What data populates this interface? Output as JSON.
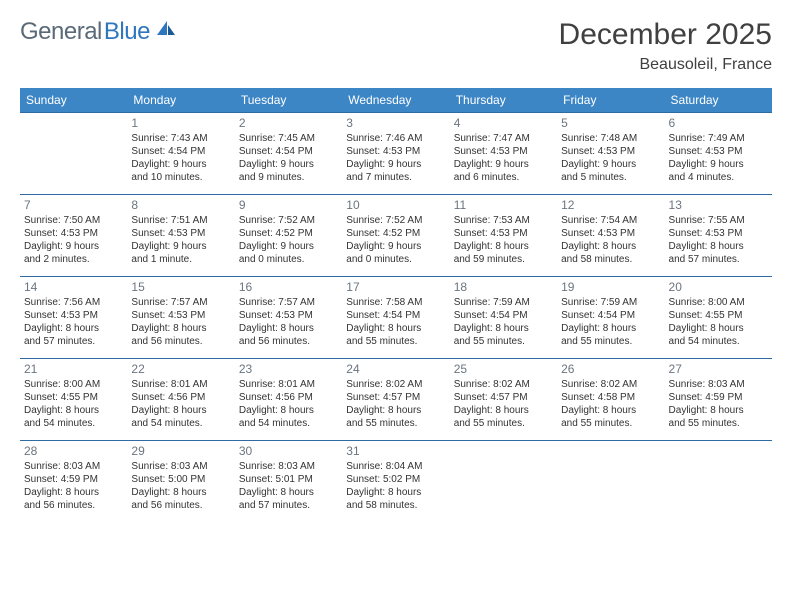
{
  "logo": {
    "part1": "General",
    "part2": "Blue"
  },
  "title": "December 2025",
  "location": "Beausoleil, France",
  "colors": {
    "header_bg": "#3d86c6",
    "header_text": "#ffffff",
    "row_border": "#2f6aa3",
    "daynum_color": "#6b7580",
    "title_color": "#404040",
    "logo_gray": "#5a6a78",
    "logo_blue": "#2f77bd",
    "background": "#ffffff"
  },
  "weekdays": [
    "Sunday",
    "Monday",
    "Tuesday",
    "Wednesday",
    "Thursday",
    "Friday",
    "Saturday"
  ],
  "weeks": [
    [
      null,
      {
        "n": "1",
        "sr": "Sunrise: 7:43 AM",
        "ss": "Sunset: 4:54 PM",
        "d1": "Daylight: 9 hours",
        "d2": "and 10 minutes."
      },
      {
        "n": "2",
        "sr": "Sunrise: 7:45 AM",
        "ss": "Sunset: 4:54 PM",
        "d1": "Daylight: 9 hours",
        "d2": "and 9 minutes."
      },
      {
        "n": "3",
        "sr": "Sunrise: 7:46 AM",
        "ss": "Sunset: 4:53 PM",
        "d1": "Daylight: 9 hours",
        "d2": "and 7 minutes."
      },
      {
        "n": "4",
        "sr": "Sunrise: 7:47 AM",
        "ss": "Sunset: 4:53 PM",
        "d1": "Daylight: 9 hours",
        "d2": "and 6 minutes."
      },
      {
        "n": "5",
        "sr": "Sunrise: 7:48 AM",
        "ss": "Sunset: 4:53 PM",
        "d1": "Daylight: 9 hours",
        "d2": "and 5 minutes."
      },
      {
        "n": "6",
        "sr": "Sunrise: 7:49 AM",
        "ss": "Sunset: 4:53 PM",
        "d1": "Daylight: 9 hours",
        "d2": "and 4 minutes."
      }
    ],
    [
      {
        "n": "7",
        "sr": "Sunrise: 7:50 AM",
        "ss": "Sunset: 4:53 PM",
        "d1": "Daylight: 9 hours",
        "d2": "and 2 minutes."
      },
      {
        "n": "8",
        "sr": "Sunrise: 7:51 AM",
        "ss": "Sunset: 4:53 PM",
        "d1": "Daylight: 9 hours",
        "d2": "and 1 minute."
      },
      {
        "n": "9",
        "sr": "Sunrise: 7:52 AM",
        "ss": "Sunset: 4:52 PM",
        "d1": "Daylight: 9 hours",
        "d2": "and 0 minutes."
      },
      {
        "n": "10",
        "sr": "Sunrise: 7:52 AM",
        "ss": "Sunset: 4:52 PM",
        "d1": "Daylight: 9 hours",
        "d2": "and 0 minutes."
      },
      {
        "n": "11",
        "sr": "Sunrise: 7:53 AM",
        "ss": "Sunset: 4:53 PM",
        "d1": "Daylight: 8 hours",
        "d2": "and 59 minutes."
      },
      {
        "n": "12",
        "sr": "Sunrise: 7:54 AM",
        "ss": "Sunset: 4:53 PM",
        "d1": "Daylight: 8 hours",
        "d2": "and 58 minutes."
      },
      {
        "n": "13",
        "sr": "Sunrise: 7:55 AM",
        "ss": "Sunset: 4:53 PM",
        "d1": "Daylight: 8 hours",
        "d2": "and 57 minutes."
      }
    ],
    [
      {
        "n": "14",
        "sr": "Sunrise: 7:56 AM",
        "ss": "Sunset: 4:53 PM",
        "d1": "Daylight: 8 hours",
        "d2": "and 57 minutes."
      },
      {
        "n": "15",
        "sr": "Sunrise: 7:57 AM",
        "ss": "Sunset: 4:53 PM",
        "d1": "Daylight: 8 hours",
        "d2": "and 56 minutes."
      },
      {
        "n": "16",
        "sr": "Sunrise: 7:57 AM",
        "ss": "Sunset: 4:53 PM",
        "d1": "Daylight: 8 hours",
        "d2": "and 56 minutes."
      },
      {
        "n": "17",
        "sr": "Sunrise: 7:58 AM",
        "ss": "Sunset: 4:54 PM",
        "d1": "Daylight: 8 hours",
        "d2": "and 55 minutes."
      },
      {
        "n": "18",
        "sr": "Sunrise: 7:59 AM",
        "ss": "Sunset: 4:54 PM",
        "d1": "Daylight: 8 hours",
        "d2": "and 55 minutes."
      },
      {
        "n": "19",
        "sr": "Sunrise: 7:59 AM",
        "ss": "Sunset: 4:54 PM",
        "d1": "Daylight: 8 hours",
        "d2": "and 55 minutes."
      },
      {
        "n": "20",
        "sr": "Sunrise: 8:00 AM",
        "ss": "Sunset: 4:55 PM",
        "d1": "Daylight: 8 hours",
        "d2": "and 54 minutes."
      }
    ],
    [
      {
        "n": "21",
        "sr": "Sunrise: 8:00 AM",
        "ss": "Sunset: 4:55 PM",
        "d1": "Daylight: 8 hours",
        "d2": "and 54 minutes."
      },
      {
        "n": "22",
        "sr": "Sunrise: 8:01 AM",
        "ss": "Sunset: 4:56 PM",
        "d1": "Daylight: 8 hours",
        "d2": "and 54 minutes."
      },
      {
        "n": "23",
        "sr": "Sunrise: 8:01 AM",
        "ss": "Sunset: 4:56 PM",
        "d1": "Daylight: 8 hours",
        "d2": "and 54 minutes."
      },
      {
        "n": "24",
        "sr": "Sunrise: 8:02 AM",
        "ss": "Sunset: 4:57 PM",
        "d1": "Daylight: 8 hours",
        "d2": "and 55 minutes."
      },
      {
        "n": "25",
        "sr": "Sunrise: 8:02 AM",
        "ss": "Sunset: 4:57 PM",
        "d1": "Daylight: 8 hours",
        "d2": "and 55 minutes."
      },
      {
        "n": "26",
        "sr": "Sunrise: 8:02 AM",
        "ss": "Sunset: 4:58 PM",
        "d1": "Daylight: 8 hours",
        "d2": "and 55 minutes."
      },
      {
        "n": "27",
        "sr": "Sunrise: 8:03 AM",
        "ss": "Sunset: 4:59 PM",
        "d1": "Daylight: 8 hours",
        "d2": "and 55 minutes."
      }
    ],
    [
      {
        "n": "28",
        "sr": "Sunrise: 8:03 AM",
        "ss": "Sunset: 4:59 PM",
        "d1": "Daylight: 8 hours",
        "d2": "and 56 minutes."
      },
      {
        "n": "29",
        "sr": "Sunrise: 8:03 AM",
        "ss": "Sunset: 5:00 PM",
        "d1": "Daylight: 8 hours",
        "d2": "and 56 minutes."
      },
      {
        "n": "30",
        "sr": "Sunrise: 8:03 AM",
        "ss": "Sunset: 5:01 PM",
        "d1": "Daylight: 8 hours",
        "d2": "and 57 minutes."
      },
      {
        "n": "31",
        "sr": "Sunrise: 8:04 AM",
        "ss": "Sunset: 5:02 PM",
        "d1": "Daylight: 8 hours",
        "d2": "and 58 minutes."
      },
      null,
      null,
      null
    ]
  ]
}
